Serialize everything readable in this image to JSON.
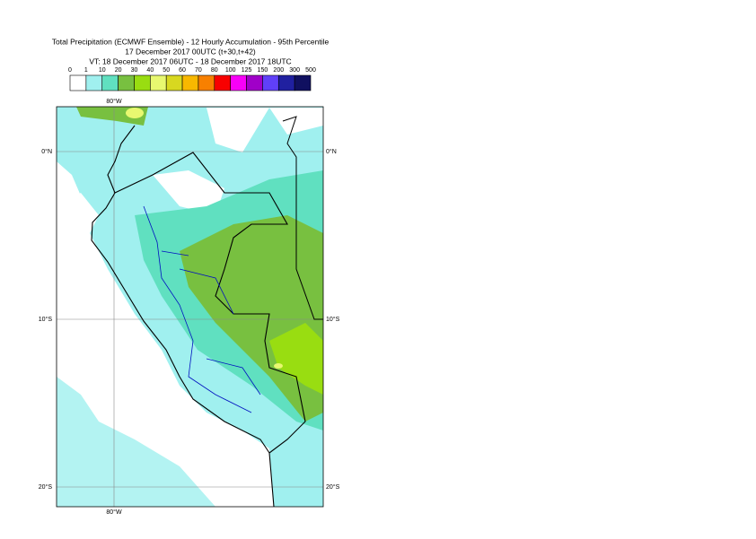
{
  "header": {
    "title": "Total Precipitation (ECMWF Ensemble) - 12 Hourly Accumulation - 95th Percentile",
    "base_time": "17 December 2017 00UTC (t+30,t+42)",
    "valid_time": "VT: 18 December 2017 06UTC - 18 December 2017 18UTC"
  },
  "legend": {
    "labels": [
      "0",
      "1",
      "10",
      "20",
      "30",
      "40",
      "50",
      "60",
      "70",
      "80",
      "100",
      "125",
      "150",
      "200",
      "300",
      "500"
    ],
    "colors": [
      "#ffffff",
      "#a0f0ef",
      "#60e0c0",
      "#78c040",
      "#99dd11",
      "#e8f870",
      "#d8d820",
      "#f8b800",
      "#f88000",
      "#f80000",
      "#f800f8",
      "#a000c8",
      "#6040f8",
      "#2020a0",
      "#101060"
    ]
  },
  "map": {
    "lon_label": "80°W",
    "lat_labels": [
      "0°N",
      "10°S",
      "20°S"
    ]
  }
}
